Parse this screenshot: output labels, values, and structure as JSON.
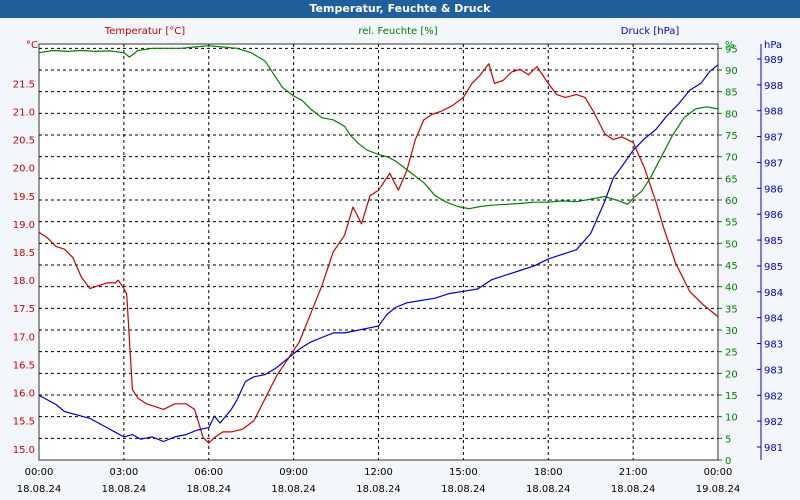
{
  "window": {
    "title": "Temperatur, Feuchte & Druck"
  },
  "colors": {
    "temperature": "#cc0000",
    "humidity": "#008000",
    "pressure": "#0000cc",
    "grid": "#000000",
    "axis": "#333333"
  },
  "chart_data": {
    "type": "line",
    "title": "Temperatur, Feuchte & Druck",
    "x_tick_labels": [
      {
        "time": "00:00",
        "date": "18.08.24"
      },
      {
        "time": "03:00",
        "date": "18.08.24"
      },
      {
        "time": "06:00",
        "date": "18.08.24"
      },
      {
        "time": "09:00",
        "date": "18.08.24"
      },
      {
        "time": "12:00",
        "date": "18.08.24"
      },
      {
        "time": "15:00",
        "date": "18.08.24"
      },
      {
        "time": "18:00",
        "date": "18.08.24"
      },
      {
        "time": "21:00",
        "date": "18.08.24"
      },
      {
        "time": "00:00",
        "date": "19.08.24"
      }
    ],
    "x_range_hours": [
      0,
      24
    ],
    "axes": {
      "temperature": {
        "label": "Temperatur [°C]",
        "unit": "°C",
        "ylim": [
          14.8,
          22.2
        ],
        "ticks": [
          15.0,
          15.5,
          16.0,
          16.5,
          17.0,
          17.5,
          18.0,
          18.5,
          19.0,
          19.5,
          20.0,
          20.5,
          21.0,
          21.5
        ],
        "tick_labels": [
          "15.0",
          "15.5",
          "16.0",
          "16.5",
          "17.0",
          "17.5",
          "18.0",
          "18.5",
          "19.0",
          "19.5",
          "20.0",
          "20.5",
          "21.0",
          "21.5"
        ]
      },
      "humidity": {
        "label": "rel. Feuchte [%]",
        "unit": "%",
        "ylim": [
          0,
          96
        ],
        "ticks": [
          0,
          5,
          10,
          15,
          20,
          25,
          30,
          35,
          40,
          45,
          50,
          55,
          60,
          65,
          70,
          75,
          80,
          85,
          90,
          95
        ],
        "tick_labels": [
          "0",
          "5",
          "10",
          "15",
          "20",
          "25",
          "30",
          "35",
          "40",
          "45",
          "50",
          "55",
          "60",
          "65",
          "70",
          "75",
          "80",
          "85",
          "90",
          "95"
        ]
      },
      "pressure": {
        "label": "Druck [hPa]",
        "unit": "hPa",
        "ylim": [
          980.6,
          989.6
        ],
        "tick_labels": [
          "981",
          "982",
          "982",
          "983",
          "983",
          "984",
          "984",
          "985",
          "985",
          "986",
          "986",
          "987",
          "987",
          "988",
          "988",
          "989"
        ]
      }
    },
    "series": [
      {
        "name": "Temperatur",
        "axis": "temperature",
        "color": "#cc0000",
        "x": [
          0,
          0.3,
          0.6,
          0.9,
          1.2,
          1.5,
          1.8,
          2.1,
          2.4,
          2.7,
          2.8,
          3.0,
          3.1,
          3.3,
          3.5,
          3.8,
          4.1,
          4.4,
          4.8,
          5.2,
          5.5,
          5.8,
          6.0,
          6.2,
          6.5,
          6.8,
          7.2,
          7.6,
          8.0,
          8.4,
          8.8,
          9.2,
          9.6,
          10.0,
          10.4,
          10.8,
          11.1,
          11.4,
          11.7,
          12.0,
          12.4,
          12.7,
          13.0,
          13.3,
          13.6,
          13.9,
          14.2,
          14.6,
          15.0,
          15.3,
          15.6,
          15.9,
          16.1,
          16.4,
          16.7,
          17.0,
          17.3,
          17.6,
          18.0,
          18.3,
          18.6,
          19.0,
          19.3,
          19.6,
          20.0,
          20.3,
          20.6,
          21.0,
          21.4,
          21.8,
          22.1,
          22.5,
          23.0,
          23.5,
          24.0
        ],
        "values": [
          18.85,
          18.75,
          18.6,
          18.55,
          18.4,
          18.05,
          17.85,
          17.9,
          17.95,
          17.95,
          18.0,
          17.85,
          17.75,
          16.05,
          15.9,
          15.8,
          15.75,
          15.7,
          15.8,
          15.8,
          15.7,
          15.2,
          15.1,
          15.2,
          15.3,
          15.3,
          15.35,
          15.5,
          15.9,
          16.3,
          16.6,
          16.9,
          17.4,
          17.9,
          18.5,
          18.8,
          19.3,
          19.0,
          19.5,
          19.6,
          19.9,
          19.6,
          19.95,
          20.5,
          20.85,
          20.95,
          21.0,
          21.1,
          21.25,
          21.5,
          21.65,
          21.85,
          21.5,
          21.55,
          21.7,
          21.75,
          21.65,
          21.8,
          21.5,
          21.3,
          21.25,
          21.3,
          21.25,
          21.0,
          20.6,
          20.5,
          20.55,
          20.45,
          20.0,
          19.4,
          18.9,
          18.3,
          17.8,
          17.55,
          17.35
        ]
      },
      {
        "name": "rel. Feuchte",
        "axis": "humidity",
        "color": "#008000",
        "x": [
          0,
          0.5,
          1,
          1.5,
          2,
          2.5,
          3,
          3.2,
          3.5,
          4,
          4.5,
          5,
          5.5,
          6,
          6.5,
          7,
          7.5,
          8,
          8.3,
          8.6,
          9,
          9.3,
          9.6,
          10,
          10.4,
          10.8,
          11,
          11.3,
          11.6,
          12,
          12.3,
          12.6,
          12.9,
          13.2,
          13.6,
          14,
          14.4,
          14.8,
          15.2,
          15.6,
          16,
          16.5,
          17,
          17.5,
          18,
          18.5,
          19,
          19.5,
          20,
          20.5,
          20.8,
          21,
          21.3,
          21.6,
          22,
          22.4,
          22.8,
          23.2,
          23.6,
          24
        ],
        "values": [
          94,
          94.5,
          94.3,
          94.5,
          94.3,
          94.4,
          94,
          93,
          94.5,
          95,
          95,
          95,
          95.3,
          95.6,
          95.3,
          95,
          94,
          92,
          89,
          86,
          84,
          83,
          81,
          79,
          78.5,
          77,
          75,
          73,
          71.5,
          70.5,
          70,
          69,
          67.5,
          66,
          64,
          61,
          59.5,
          58.5,
          58,
          58.5,
          58.8,
          59,
          59.2,
          59.5,
          59.5,
          59.8,
          59.6,
          60.2,
          60.8,
          59.8,
          59,
          60.4,
          62,
          65,
          70,
          75,
          79,
          81,
          81.5,
          81
        ]
      },
      {
        "name": "Druck",
        "axis": "pressure",
        "color": "#0000cc",
        "x": [
          0,
          0.3,
          0.6,
          0.9,
          1.2,
          1.5,
          1.8,
          2.1,
          2.4,
          2.7,
          3.0,
          3.3,
          3.6,
          4.0,
          4.4,
          4.8,
          5.2,
          5.6,
          6.0,
          6.2,
          6.4,
          6.6,
          6.8,
          7.0,
          7.3,
          7.6,
          8.0,
          8.4,
          8.8,
          9.2,
          9.6,
          10.0,
          10.4,
          10.8,
          11.2,
          11.6,
          12.0,
          12.3,
          12.6,
          13.0,
          13.5,
          14.0,
          14.5,
          15.0,
          15.5,
          16.0,
          16.5,
          17.0,
          17.5,
          18.0,
          18.5,
          19.0,
          19.5,
          20.0,
          20.3,
          20.6,
          21.0,
          21.4,
          21.8,
          22.2,
          22.6,
          23.0,
          23.4,
          23.7,
          24.0
        ],
        "values": [
          982.0,
          981.9,
          981.8,
          981.65,
          981.6,
          981.55,
          981.5,
          981.4,
          981.3,
          981.2,
          981.1,
          981.15,
          981.05,
          981.1,
          981.0,
          981.1,
          981.15,
          981.25,
          981.3,
          981.55,
          981.4,
          981.55,
          981.7,
          981.9,
          982.3,
          982.4,
          982.45,
          982.6,
          982.8,
          983.0,
          983.15,
          983.25,
          983.35,
          983.35,
          983.4,
          983.45,
          983.5,
          983.75,
          983.9,
          984.0,
          984.05,
          984.1,
          984.2,
          984.25,
          984.3,
          984.5,
          984.6,
          984.7,
          984.8,
          984.95,
          985.05,
          985.15,
          985.5,
          986.2,
          986.7,
          986.95,
          987.3,
          987.55,
          987.75,
          988.05,
          988.3,
          988.6,
          988.75,
          989.0,
          989.15
        ]
      }
    ]
  }
}
